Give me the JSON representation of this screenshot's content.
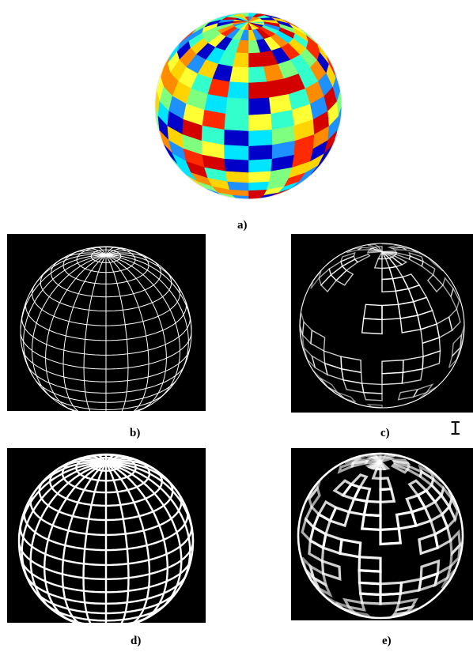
{
  "captions": {
    "a": "a)",
    "b": "b)",
    "c": "c)",
    "d": "d)",
    "e": "e)"
  },
  "colors": {
    "background": "#ffffff",
    "panel": "#000000",
    "grid_line": "#ffffff",
    "palette": [
      "#d40000",
      "#ff2a00",
      "#ff8c00",
      "#ffd400",
      "#ffff33",
      "#33ffcc",
      "#00e5ff",
      "#1e90ff",
      "#0000c8",
      "#7fff7f"
    ]
  },
  "cursor": {
    "icon": "text-cursor-icon",
    "glyph": "I"
  },
  "figures": [
    {
      "id": "a",
      "rendering": "colored-patch-sphere"
    },
    {
      "id": "b",
      "rendering": "white-wireframe-on-black"
    },
    {
      "id": "c",
      "rendering": "patch-outlines-on-black"
    },
    {
      "id": "d",
      "rendering": "thick-wireframe-on-black"
    },
    {
      "id": "e",
      "rendering": "thick-patch-outlines-on-black"
    }
  ]
}
